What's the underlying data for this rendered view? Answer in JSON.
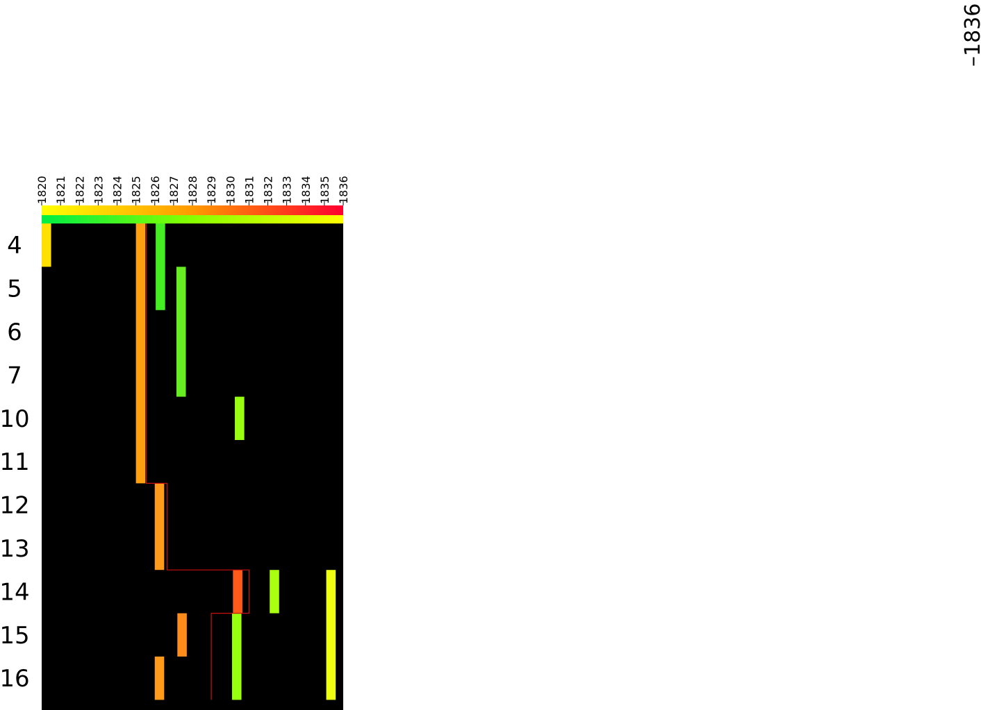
{
  "chart_data": {
    "type": "heatmap",
    "x_years": [
      "1820",
      "1821",
      "1822",
      "1823",
      "1824",
      "1825",
      "1826",
      "1827",
      "1828",
      "1829",
      "1830",
      "1831",
      "1832",
      "1833",
      "1834",
      "1835",
      "1836"
    ],
    "x_range": [
      1820,
      1836
    ],
    "rows": [
      "4",
      "5",
      "6",
      "7",
      "10",
      "11",
      "12",
      "13",
      "14",
      "15",
      "16"
    ],
    "corner_label": "–1836",
    "top_gradient": [
      "#ffff00",
      "#ff9a00",
      "#ff0030"
    ],
    "second_gradient": [
      "#00ee44",
      "#88ff00",
      "#ffff00"
    ],
    "background": "#000000",
    "bars": [
      {
        "year": 1820.0,
        "width": 0.5,
        "row_start": 0,
        "row_end": 1,
        "color": "#ffe000"
      },
      {
        "year": 1825.0,
        "width": 0.5,
        "row_start": 0,
        "row_end": 6,
        "color": "#ffa010"
      },
      {
        "year": 1826.05,
        "width": 0.5,
        "row_start": 0,
        "row_end": 2,
        "color": "#44ee22"
      },
      {
        "year": 1827.15,
        "width": 0.5,
        "row_start": 1,
        "row_end": 4,
        "color": "#66ee22"
      },
      {
        "year": 1830.25,
        "width": 0.5,
        "row_start": 4,
        "row_end": 5,
        "color": "#99ff11"
      },
      {
        "year": 1826.0,
        "width": 0.5,
        "row_start": 6,
        "row_end": 8,
        "color": "#ff9a1a"
      },
      {
        "year": 1830.15,
        "width": 0.5,
        "row_start": 8,
        "row_end": 9,
        "color": "#ff5a1a"
      },
      {
        "year": 1832.1,
        "width": 0.5,
        "row_start": 8,
        "row_end": 9,
        "color": "#aaff11"
      },
      {
        "year": 1835.1,
        "width": 0.5,
        "row_start": 8,
        "row_end": 11,
        "color": "#eeff11"
      },
      {
        "year": 1827.2,
        "width": 0.5,
        "row_start": 9,
        "row_end": 10,
        "color": "#ff8c1a"
      },
      {
        "year": 1830.1,
        "width": 0.5,
        "row_start": 9,
        "row_end": 11,
        "color": "#99ff11"
      },
      {
        "year": 1826.0,
        "width": 0.5,
        "row_start": 10,
        "row_end": 11,
        "color": "#ff9a1a"
      }
    ],
    "trace_line": {
      "color": "#cc1111",
      "points": [
        [
          1825.55,
          0
        ],
        [
          1825.55,
          6
        ],
        [
          1826.2,
          6
        ],
        [
          1826.2,
          6
        ],
        [
          1826.65,
          6
        ],
        [
          1826.65,
          8
        ],
        [
          1831.0,
          8
        ],
        [
          1831.0,
          9
        ],
        [
          1829.0,
          9
        ],
        [
          1829.0,
          11
        ]
      ]
    }
  }
}
